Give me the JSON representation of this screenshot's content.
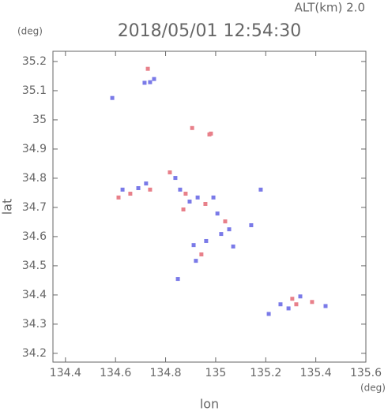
{
  "chart_data": {
    "type": "scatter",
    "title": "2018/05/01 12:54:30",
    "altitude_label": "ALT(km) 2.0",
    "y_unit": "(deg)",
    "x_unit": "(deg)",
    "xlabel": "lon",
    "ylabel": "lat",
    "xlim": [
      134.35,
      135.6
    ],
    "ylim": [
      34.17,
      35.235
    ],
    "xticks": [
      134.4,
      134.6,
      134.8,
      135.0,
      135.2,
      135.4,
      135.6
    ],
    "yticks": [
      34.2,
      34.3,
      34.4,
      34.5,
      34.6,
      34.7,
      34.8,
      34.9,
      35.0,
      35.1,
      35.2
    ],
    "series": [
      {
        "color": "#e8808a",
        "x": [
          134.729,
          134.906,
          134.975,
          134.981,
          134.659,
          134.612,
          134.738,
          134.817,
          134.88,
          134.871,
          134.959,
          135.038,
          134.943,
          135.306,
          135.322,
          135.385
        ],
        "y": [
          35.175,
          34.972,
          34.95,
          34.953,
          34.747,
          34.734,
          34.761,
          34.82,
          34.747,
          34.693,
          34.712,
          34.652,
          34.539,
          34.387,
          34.368,
          34.376
        ]
      },
      {
        "color": "#7a7ae8",
        "x": [
          134.587,
          134.738,
          134.716,
          134.754,
          134.628,
          134.691,
          134.722,
          134.839,
          134.858,
          134.896,
          134.928,
          134.991,
          135.007,
          135.054,
          135.022,
          135.07,
          134.912,
          134.921,
          134.962,
          134.849,
          135.142,
          135.18,
          135.212,
          135.259,
          135.338,
          135.291,
          135.439
        ],
        "y": [
          35.075,
          35.129,
          35.127,
          35.14,
          34.761,
          34.766,
          34.782,
          34.801,
          34.761,
          34.72,
          34.734,
          34.734,
          34.679,
          34.625,
          34.609,
          34.566,
          34.571,
          34.517,
          34.585,
          34.455,
          34.639,
          34.761,
          34.335,
          34.368,
          34.395,
          34.354,
          34.362
        ]
      }
    ]
  }
}
